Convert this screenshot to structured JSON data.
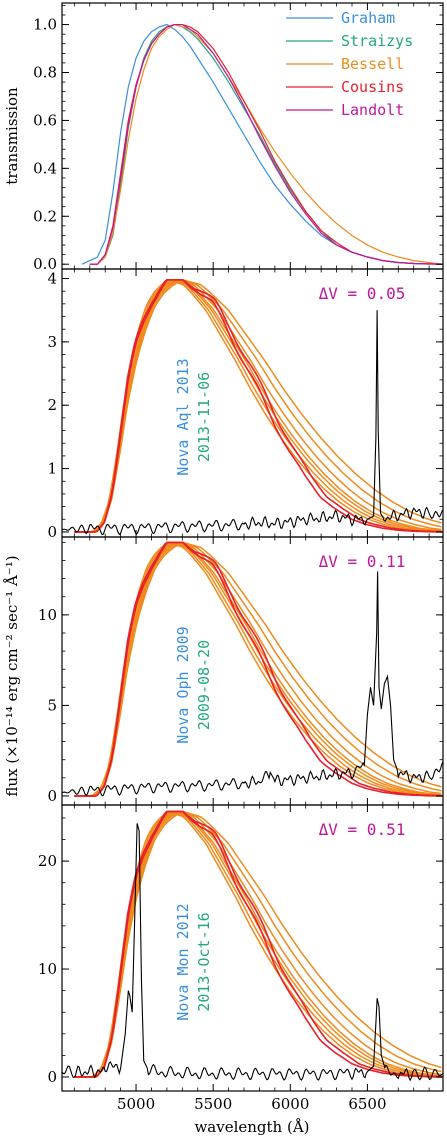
{
  "chart_data": [
    {
      "type": "line",
      "ylabel": "transmission",
      "ylim": [
        -0.02,
        1.09
      ],
      "yticks": [
        0.0,
        0.2,
        0.4,
        0.6,
        0.8,
        1.0
      ],
      "ytick_labels": [
        "0.0",
        "0.2",
        "0.4",
        "0.6",
        "0.8",
        "1.0"
      ],
      "xlim": [
        4520,
        6990
      ],
      "legend_position": "top-right",
      "series": [
        {
          "name": "Graham",
          "color": "#3a8fe0",
          "x": [
            4650,
            4750,
            4800,
            4850,
            4900,
            4950,
            5000,
            5050,
            5100,
            5150,
            5200,
            5250,
            5300,
            5350,
            5400,
            5500,
            5600,
            5700,
            5800,
            5900,
            6000,
            6100,
            6200,
            6300,
            6400,
            6500,
            6600,
            6700,
            6800,
            6900,
            6990
          ],
          "y": [
            0.0,
            0.03,
            0.1,
            0.3,
            0.55,
            0.74,
            0.86,
            0.93,
            0.97,
            0.99,
            1.0,
            0.98,
            0.95,
            0.91,
            0.86,
            0.76,
            0.65,
            0.54,
            0.43,
            0.33,
            0.25,
            0.18,
            0.12,
            0.08,
            0.05,
            0.03,
            0.015,
            0.007,
            0.003,
            0.0,
            0.0
          ]
        },
        {
          "name": "Straizys",
          "color": "#22a882",
          "x": [
            4700,
            4750,
            4800,
            4850,
            4900,
            4950,
            5000,
            5050,
            5100,
            5150,
            5200,
            5250,
            5300,
            5350,
            5400,
            5500,
            5600,
            5700,
            5800,
            5900,
            6000,
            6100,
            6200,
            6300,
            6400,
            6500,
            6600,
            6700,
            6800,
            6990
          ],
          "y": [
            0.0,
            0.0,
            0.03,
            0.12,
            0.33,
            0.57,
            0.74,
            0.86,
            0.93,
            0.97,
            0.99,
            1.0,
            0.99,
            0.97,
            0.94,
            0.86,
            0.76,
            0.65,
            0.54,
            0.42,
            0.31,
            0.22,
            0.14,
            0.08,
            0.05,
            0.03,
            0.015,
            0.007,
            0.003,
            0.0
          ]
        },
        {
          "name": "Bessell",
          "color": "#f08a1c",
          "x": [
            4700,
            4750,
            4800,
            4850,
            4900,
            4950,
            5000,
            5050,
            5100,
            5150,
            5200,
            5250,
            5300,
            5350,
            5400,
            5500,
            5600,
            5700,
            5800,
            5900,
            6000,
            6100,
            6200,
            6300,
            6400,
            6500,
            6600,
            6700,
            6800,
            6990
          ],
          "y": [
            0.0,
            0.0,
            0.03,
            0.13,
            0.31,
            0.52,
            0.69,
            0.81,
            0.9,
            0.95,
            0.98,
            1.0,
            0.99,
            0.98,
            0.95,
            0.88,
            0.78,
            0.68,
            0.57,
            0.47,
            0.38,
            0.3,
            0.23,
            0.17,
            0.12,
            0.08,
            0.05,
            0.03,
            0.015,
            0.0
          ]
        },
        {
          "name": "Cousins",
          "color": "#e8202a",
          "x": [
            4700,
            4750,
            4800,
            4850,
            4900,
            4950,
            5000,
            5050,
            5100,
            5150,
            5200,
            5250,
            5300,
            5350,
            5400,
            5500,
            5600,
            5700,
            5800,
            5900,
            6000,
            6100,
            6200,
            6300,
            6400,
            6500,
            6600,
            6700,
            6800,
            6990
          ],
          "y": [
            0.0,
            0.0,
            0.04,
            0.16,
            0.38,
            0.6,
            0.75,
            0.85,
            0.92,
            0.96,
            0.99,
            1.0,
            1.0,
            0.99,
            0.97,
            0.9,
            0.8,
            0.68,
            0.56,
            0.43,
            0.32,
            0.22,
            0.14,
            0.09,
            0.05,
            0.03,
            0.015,
            0.007,
            0.003,
            0.0
          ]
        },
        {
          "name": "Landolt",
          "color": "#c0179b",
          "x": [
            4700,
            4750,
            4800,
            4850,
            4900,
            4950,
            5000,
            5050,
            5100,
            5150,
            5200,
            5250,
            5300,
            5350,
            5400,
            5500,
            5600,
            5700,
            5800,
            5900,
            6000,
            6100,
            6200,
            6300,
            6400,
            6500,
            6600,
            6700,
            6800,
            6990
          ],
          "y": [
            0.0,
            0.0,
            0.04,
            0.15,
            0.36,
            0.58,
            0.74,
            0.85,
            0.92,
            0.96,
            0.99,
            1.0,
            1.0,
            0.98,
            0.96,
            0.88,
            0.78,
            0.66,
            0.53,
            0.41,
            0.3,
            0.21,
            0.13,
            0.08,
            0.05,
            0.03,
            0.015,
            0.007,
            0.003,
            0.0
          ]
        }
      ]
    },
    {
      "type": "line",
      "annotation": {
        "text": "ΔV = 0.05",
        "color": "#c0179b"
      },
      "labels": [
        {
          "text": "Nova Aql 2013",
          "color": "#3a8fe0"
        },
        {
          "text": "2013-11-06",
          "color": "#22a882"
        }
      ],
      "ylim": [
        -0.08,
        4.15
      ],
      "yticks": [
        0,
        1,
        2,
        3,
        4
      ],
      "ytick_labels": [
        "0",
        "1",
        "2",
        "3",
        "4"
      ],
      "xlim": [
        4520,
        6990
      ],
      "filter_peak": 3.98,
      "spectrum": {
        "color": "#000000",
        "x": [
          4520,
          4700,
          4900,
          5100,
          5300,
          5500,
          5700,
          5800,
          5900,
          6000,
          6100,
          6200,
          6300,
          6400,
          6500,
          6540,
          6555,
          6563,
          6570,
          6585,
          6600,
          6700,
          6800,
          6900,
          6990
        ],
        "y": [
          0.04,
          0.05,
          0.06,
          0.07,
          0.09,
          0.1,
          0.12,
          0.15,
          0.13,
          0.16,
          0.2,
          0.22,
          0.25,
          0.2,
          0.2,
          0.25,
          1.5,
          3.5,
          1.6,
          0.3,
          0.22,
          0.26,
          0.32,
          0.3,
          0.35
        ]
      }
    },
    {
      "type": "line",
      "annotation": {
        "text": "ΔV = 0.11",
        "color": "#c0179b"
      },
      "labels": [
        {
          "text": "Nova Oph 2009",
          "color": "#3a8fe0"
        },
        {
          "text": "2009-08-20",
          "color": "#22a882"
        }
      ],
      "ylim": [
        -0.5,
        14.3
      ],
      "yticks": [
        0,
        5,
        10
      ],
      "ytick_labels": [
        "0",
        "5",
        "10"
      ],
      "xlim": [
        4520,
        6990
      ],
      "filter_peak": 14.0,
      "spectrum": {
        "color": "#000000",
        "x": [
          4520,
          4700,
          4900,
          5100,
          5300,
          5500,
          5700,
          5800,
          5870,
          5900,
          6000,
          6100,
          6200,
          6300,
          6400,
          6480,
          6500,
          6520,
          6540,
          6560,
          6566,
          6575,
          6590,
          6610,
          6630,
          6650,
          6670,
          6700,
          6800,
          6900,
          6990
        ],
        "y": [
          0.2,
          0.3,
          0.4,
          0.5,
          0.55,
          0.6,
          0.7,
          0.8,
          1.3,
          0.85,
          0.9,
          1.0,
          1.1,
          1.2,
          1.3,
          1.7,
          4.5,
          6.0,
          5.0,
          9.0,
          12.4,
          6.0,
          4.8,
          6.2,
          6.6,
          5.0,
          2.0,
          1.3,
          1.0,
          1.1,
          1.9
        ]
      }
    },
    {
      "type": "line",
      "annotation": {
        "text": "ΔV = 0.51",
        "color": "#c0179b"
      },
      "labels": [
        {
          "text": "Nova Mon 2012",
          "color": "#3a8fe0"
        },
        {
          "text": "2013-Oct-16",
          "color": "#22a882"
        }
      ],
      "ylim": [
        -1.3,
        25.2
      ],
      "yticks": [
        0,
        10,
        20
      ],
      "ytick_labels": [
        "0",
        "10",
        "20"
      ],
      "xlim": [
        4520,
        6990
      ],
      "filter_peak": 24.6,
      "spectrum": {
        "color": "#000000",
        "x": [
          4520,
          4600,
          4700,
          4800,
          4850,
          4900,
          4930,
          4950,
          4960,
          4975,
          4990,
          5007,
          5020,
          5035,
          5050,
          5080,
          5200,
          5400,
          5600,
          5800,
          6000,
          6200,
          6400,
          6500,
          6540,
          6555,
          6563,
          6575,
          6590,
          6620,
          6700,
          6800,
          6990
        ],
        "y": [
          0.5,
          0.4,
          0.5,
          0.5,
          1.0,
          0.8,
          4.0,
          8.0,
          7.5,
          6.0,
          14.0,
          23.5,
          22.8,
          9.0,
          1.5,
          0.6,
          0.4,
          0.3,
          0.3,
          0.3,
          0.3,
          0.3,
          0.4,
          0.5,
          1.0,
          5.0,
          7.3,
          6.5,
          2.0,
          0.5,
          0.3,
          0.3,
          0.3
        ]
      }
    }
  ],
  "x_axis": {
    "title": "wavelength (Å)",
    "ticks": [
      5000,
      5500,
      6000,
      6500
    ],
    "tick_labels": [
      "5000",
      "5500",
      "6000",
      "6500"
    ]
  },
  "shared_ylabel": "flux (×10⁻¹⁴ erg cm⁻² sec⁻¹ Å⁻¹)"
}
